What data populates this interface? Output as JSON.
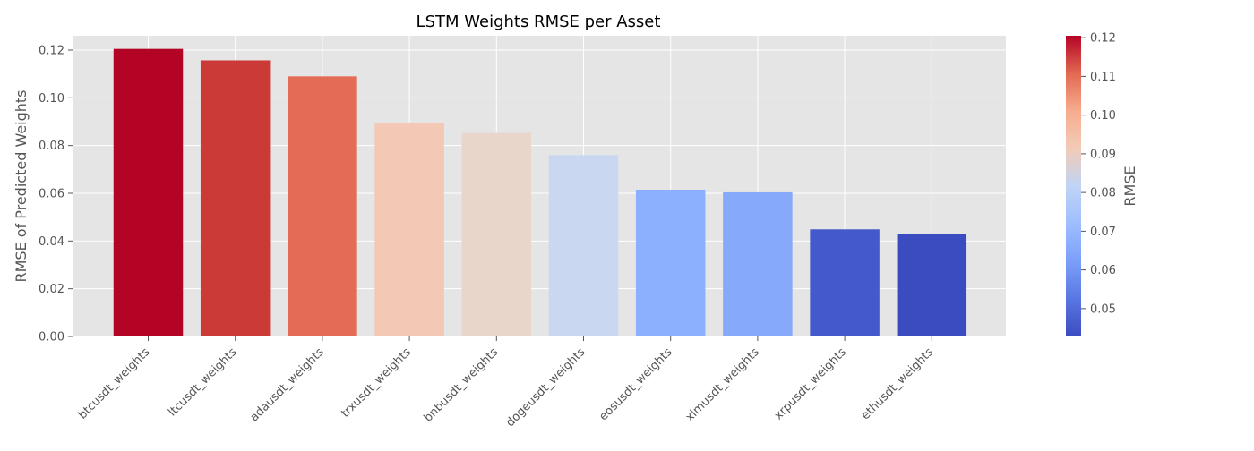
{
  "chart_data": {
    "type": "bar",
    "title": "LSTM Weights RMSE per Asset",
    "xlabel": "",
    "ylabel": "RMSE of Predicted Weights",
    "ylim": [
      0,
      0.126
    ],
    "yticks": [
      "0.00",
      "0.02",
      "0.04",
      "0.06",
      "0.08",
      "0.10",
      "0.12"
    ],
    "grid": true,
    "categories": [
      "btcusdt_weights",
      "ltcusdt_weights",
      "adausdt_weights",
      "trxusdt_weights",
      "bnbusdt_weights",
      "dogeusdt_weights",
      "eosusdt_weights",
      "xlmusdt_weights",
      "xrpusdt_weights",
      "ethusdt_weights"
    ],
    "values": [
      0.1205,
      0.1157,
      0.109,
      0.0895,
      0.0853,
      0.076,
      0.0615,
      0.0604,
      0.0449,
      0.0428
    ],
    "bar_colors": [
      "#b40426",
      "#cb3a37",
      "#e46c55",
      "#f3c8b5",
      "#e8d6ca",
      "#c9d7f0",
      "#8caffe",
      "#86a9fc",
      "#445acc",
      "#3b4cc0"
    ],
    "colorbar": {
      "label": "RMSE",
      "range": [
        0.0428,
        0.1205
      ],
      "ticks": [
        "0.05",
        "0.06",
        "0.07",
        "0.08",
        "0.09",
        "0.10",
        "0.11",
        "0.12"
      ],
      "colormap": "coolwarm"
    }
  }
}
